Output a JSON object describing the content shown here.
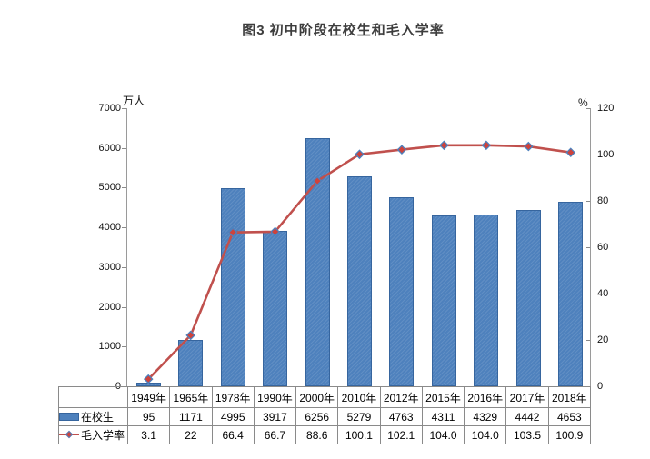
{
  "title": "图3  初中阶段在校生和毛入学率",
  "chart_data": {
    "type": "combo-bar-line",
    "categories": [
      "1949年",
      "1965年",
      "1978年",
      "1990年",
      "2000年",
      "2010年",
      "2012年",
      "2015年",
      "2016年",
      "2017年",
      "2018年"
    ],
    "series": [
      {
        "name": "在校生",
        "type": "bar",
        "axis": "left",
        "color": "#4e81bd",
        "values": [
          95,
          1171,
          4995,
          3917,
          6256,
          5279,
          4763,
          4311,
          4329,
          4442,
          4653
        ],
        "labels": [
          "95",
          "1171",
          "4995",
          "3917",
          "6256",
          "5279",
          "4763",
          "4311",
          "4329",
          "4442",
          "4653"
        ]
      },
      {
        "name": "毛入学率",
        "type": "line",
        "axis": "right",
        "color": "#c0504d",
        "values": [
          3.1,
          22,
          66.4,
          66.7,
          88.6,
          100.1,
          102.1,
          104.0,
          104.0,
          103.5,
          100.9
        ],
        "labels": [
          "3.1",
          "22",
          "66.4",
          "66.7",
          "88.6",
          "100.1",
          "102.1",
          "104.0",
          "104.0",
          "103.5",
          "100.9"
        ]
      }
    ],
    "left_axis": {
      "title": "万人",
      "min": 0,
      "max": 7000,
      "step": 1000
    },
    "right_axis": {
      "title": "%",
      "min": 0,
      "max": 120,
      "step": 20
    },
    "grid": false,
    "data_table": true,
    "legend_position": "data-table-left-column"
  },
  "colors": {
    "bar_fill": "#4e81bd",
    "bar_border": "#36659e",
    "line": "#c0504d",
    "marker_fill": "#cf423b",
    "marker_border": "#4e81bd",
    "axis": "#9a9a9a",
    "table_border": "#8a8a8a",
    "title_text": "#3d3d3d"
  }
}
